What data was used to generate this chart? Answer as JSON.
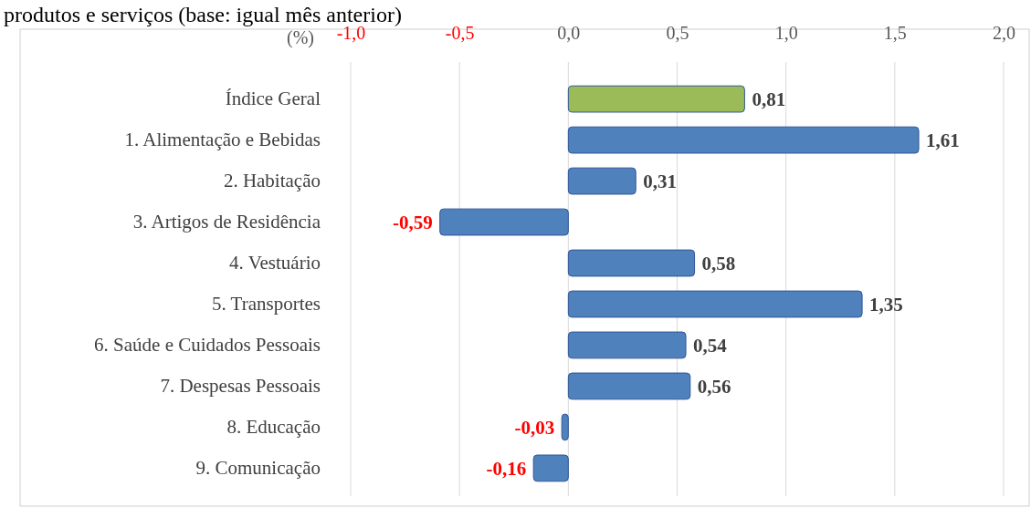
{
  "chart_data": {
    "type": "bar",
    "orientation": "horizontal",
    "title": "produtos e serviços (base: igual mês anterior)",
    "xlabel": "(%)",
    "categories": [
      "Índice Geral",
      "1. Alimentação e Bebidas",
      "2. Habitação",
      "3. Artigos de Residência",
      "4. Vestuário",
      "5. Transportes",
      "6. Saúde e Cuidados Pessoais",
      "7. Despesas Pessoais",
      "8. Educação",
      "9. Comunicação"
    ],
    "values": [
      0.81,
      1.61,
      0.31,
      -0.59,
      0.58,
      1.35,
      0.54,
      0.56,
      -0.03,
      -0.16
    ],
    "colors": [
      "#9bbb59",
      "#4f81bd",
      "#4f81bd",
      "#4f81bd",
      "#4f81bd",
      "#4f81bd",
      "#4f81bd",
      "#4f81bd",
      "#4f81bd",
      "#4f81bd"
    ],
    "value_labels": [
      "0,81",
      "1,61",
      "0,31",
      "-0,59",
      "0,58",
      "1,35",
      "0,54",
      "0,56",
      "-0,03",
      "-0,16"
    ],
    "xlim": [
      -1,
      2
    ],
    "xticks": [
      {
        "value": -1,
        "label": "-1,0"
      },
      {
        "value": -0.5,
        "label": "-0,5"
      },
      {
        "value": 0,
        "label": "0,0"
      },
      {
        "value": 0.5,
        "label": "0,5"
      },
      {
        "value": 1,
        "label": "1,0"
      },
      {
        "value": 1.5,
        "label": "1,5"
      },
      {
        "value": 2,
        "label": "2,0"
      }
    ],
    "grid": "x"
  }
}
